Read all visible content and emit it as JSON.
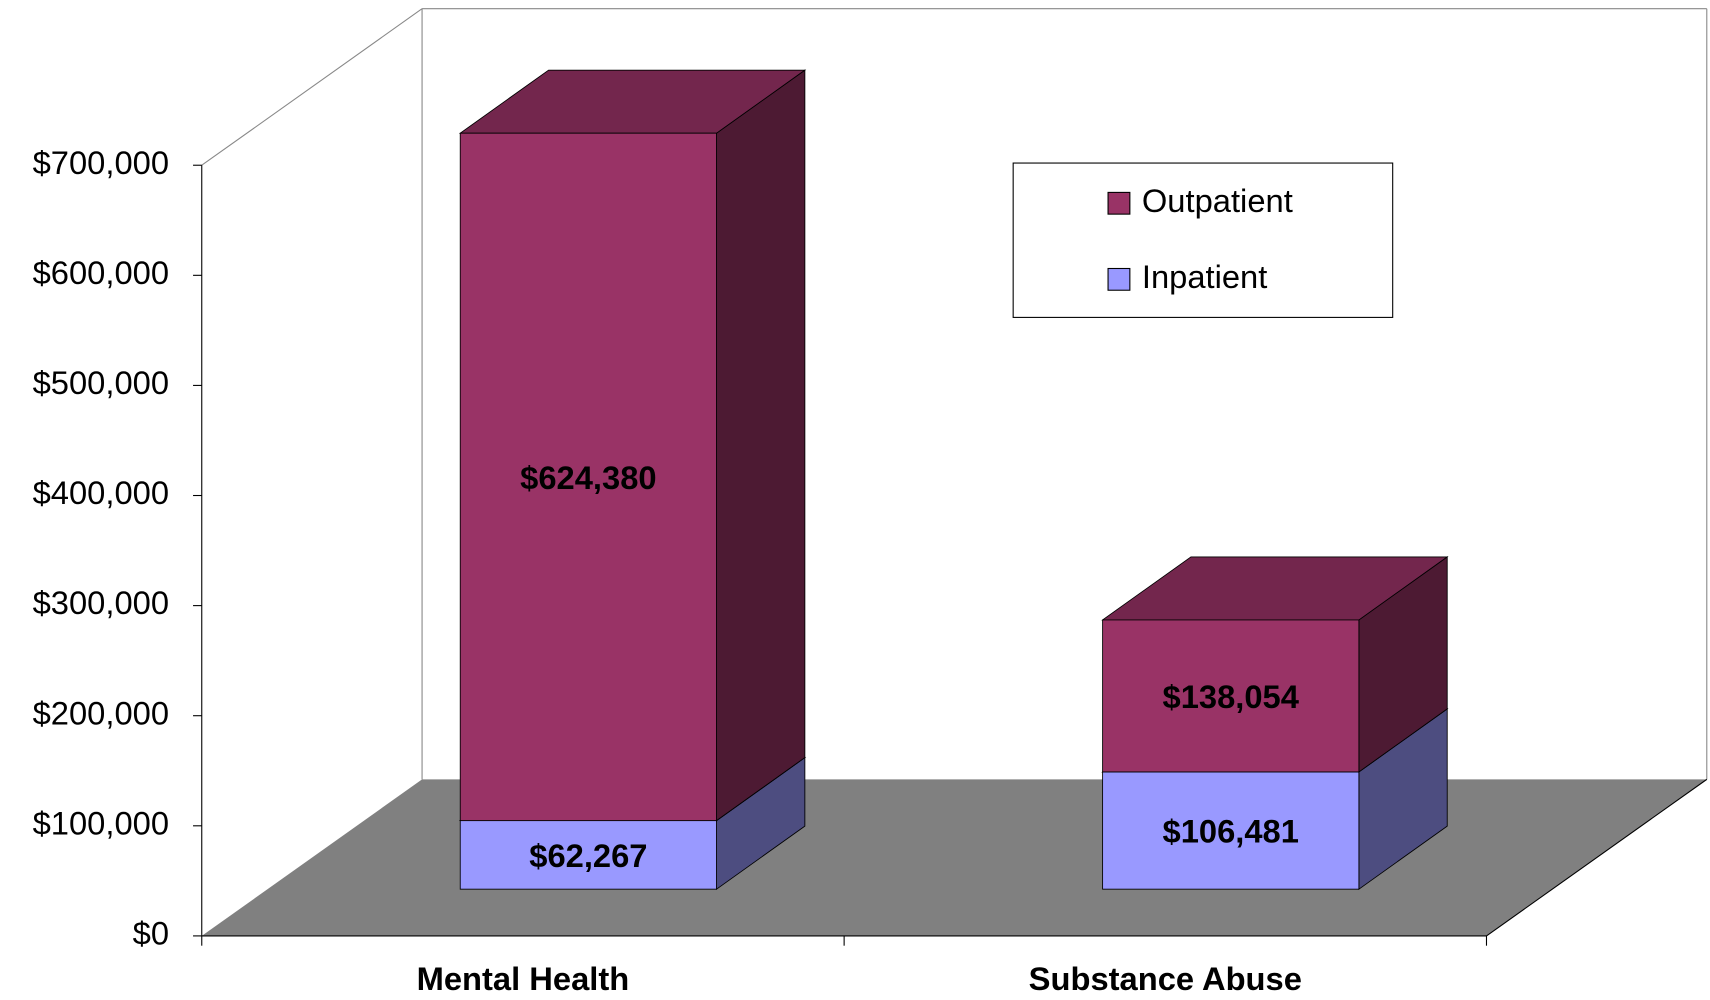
{
  "chart_data": {
    "type": "bar3d_stacked",
    "categories": [
      "Mental Health",
      "Substance Abuse"
    ],
    "series": [
      {
        "name": "Inpatient",
        "color": "#9999ff",
        "values": [
          62267,
          106481
        ],
        "value_labels": [
          "$62,267",
          "$106,481"
        ]
      },
      {
        "name": "Outpatient",
        "color": "#993366",
        "values": [
          624380,
          138054
        ],
        "value_labels": [
          "$624,380",
          "$138,054"
        ]
      }
    ],
    "ylim": [
      0,
      700000
    ],
    "yticks": [
      {
        "value": 0,
        "label": "$0"
      },
      {
        "value": 100000,
        "label": "$100,000"
      },
      {
        "value": 200000,
        "label": "$200,000"
      },
      {
        "value": 300000,
        "label": "$300,000"
      },
      {
        "value": 400000,
        "label": "$400,000"
      },
      {
        "value": 500000,
        "label": "$500,000"
      },
      {
        "value": 600000,
        "label": "$600,000"
      },
      {
        "value": 700000,
        "label": "$700,000"
      }
    ],
    "legend": "top-right"
  }
}
